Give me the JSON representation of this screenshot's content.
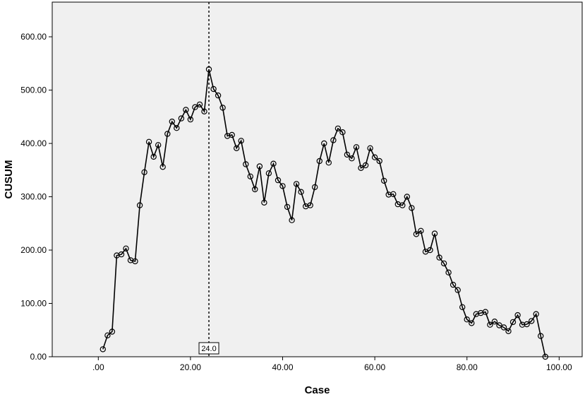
{
  "chart_data": {
    "type": "line",
    "title": "",
    "xlabel": "Case",
    "ylabel": "CUSUM",
    "xlim": [
      -10,
      105
    ],
    "ylim": [
      0,
      665
    ],
    "x_ticks": [
      0,
      20,
      40,
      60,
      80,
      100
    ],
    "x_tick_labels": [
      ".00",
      "20.00",
      "40.00",
      "60.00",
      "80.00",
      "100.00"
    ],
    "y_ticks": [
      0,
      100,
      200,
      300,
      400,
      500,
      600
    ],
    "y_tick_labels": [
      "0.00",
      "100.00",
      "200.00",
      "300.00",
      "400.00",
      "500.00",
      "600.00"
    ],
    "grid": false,
    "legend": "none",
    "marker": "open-circle",
    "reference_line": {
      "x": 24,
      "label": "24.0",
      "style": "dashed"
    },
    "colors": {
      "plot_background": "#f0f0f0",
      "line": "#000000",
      "frame": "#000000"
    },
    "series": [
      {
        "x": [
          1,
          2,
          3,
          4,
          5,
          6,
          7,
          8,
          9,
          10,
          11,
          12,
          13,
          14,
          15,
          16,
          17,
          18,
          19,
          20,
          21,
          22,
          23,
          24,
          25,
          26,
          27,
          28,
          29,
          30,
          31,
          32,
          33,
          34,
          35,
          36,
          37,
          38,
          39,
          40,
          41,
          42,
          43,
          44,
          45,
          46,
          47,
          48,
          49,
          50,
          51,
          52,
          53,
          54,
          55,
          56,
          57,
          58,
          59,
          60,
          61,
          62,
          63,
          64,
          65,
          66,
          67,
          68,
          69,
          70,
          71,
          72,
          73,
          74,
          75,
          76,
          77,
          78,
          79,
          80,
          81,
          82,
          83,
          84,
          85,
          86,
          87,
          88,
          89,
          90,
          91,
          92,
          93,
          94,
          95,
          96,
          97
        ],
        "values": [
          14,
          40,
          47,
          190,
          192,
          203,
          181,
          179,
          284,
          346,
          403,
          375,
          397,
          356,
          418,
          441,
          429,
          447,
          463,
          445,
          468,
          473,
          460,
          539,
          502,
          490,
          467,
          414,
          416,
          391,
          405,
          361,
          338,
          314,
          357,
          289,
          344,
          362,
          331,
          320,
          281,
          256,
          324,
          309,
          282,
          284,
          318,
          367,
          400,
          364,
          406,
          428,
          421,
          379,
          372,
          393,
          354,
          359,
          391,
          374,
          367,
          330,
          304,
          305,
          286,
          284,
          300,
          279,
          230,
          236,
          197,
          200,
          231,
          186,
          175,
          158,
          135,
          125,
          93,
          70,
          63,
          80,
          82,
          84,
          60,
          66,
          59,
          55,
          48,
          65,
          78,
          60,
          61,
          67,
          80,
          39,
          0
        ]
      }
    ]
  }
}
